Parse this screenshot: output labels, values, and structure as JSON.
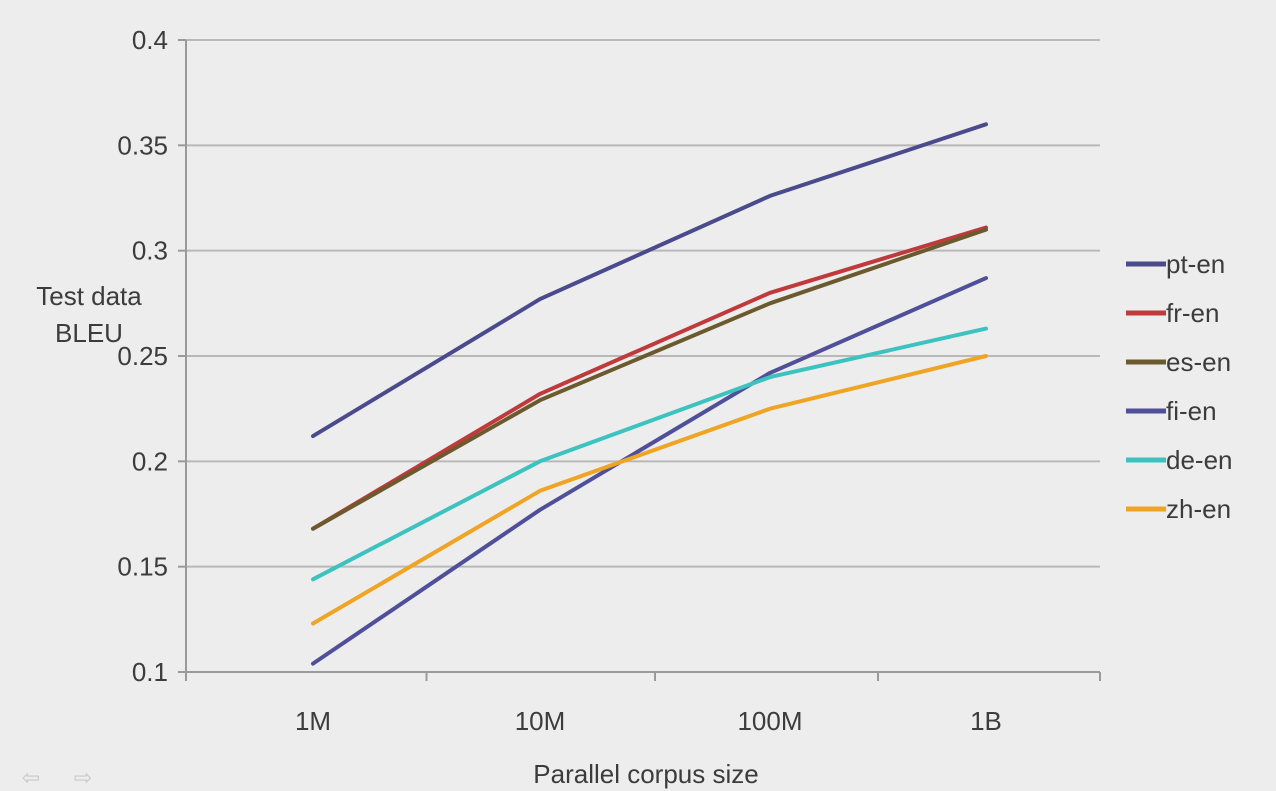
{
  "chart_data": {
    "type": "line",
    "title": "",
    "xlabel": "Parallel corpus size",
    "ylabel": [
      "Test data",
      "BLEU"
    ],
    "categories": [
      "1M",
      "10M",
      "100M",
      "1B"
    ],
    "ylim": [
      0.1,
      0.4
    ],
    "yticks": [
      0.1,
      0.15,
      0.2,
      0.25,
      0.3,
      0.35,
      0.4
    ],
    "ytick_labels": [
      "0.1",
      "0.15",
      "0.2",
      "0.25",
      "0.3",
      "0.35",
      "0.4"
    ],
    "grid": true,
    "legend_position": "right",
    "series": [
      {
        "name": "pt-en",
        "color": "#4a4a8c",
        "values": [
          0.212,
          0.277,
          0.326,
          0.36
        ]
      },
      {
        "name": "fr-en",
        "color": "#c0393b",
        "values": [
          0.168,
          0.232,
          0.28,
          0.311
        ]
      },
      {
        "name": "es-en",
        "color": "#6b5a2e",
        "values": [
          0.168,
          0.229,
          0.275,
          0.31
        ]
      },
      {
        "name": "fi-en",
        "color": "#4f4f9a",
        "values": [
          0.104,
          0.177,
          0.242,
          0.287
        ]
      },
      {
        "name": "de-en",
        "color": "#3cc3c0",
        "values": [
          0.144,
          0.2,
          0.24,
          0.263
        ]
      },
      {
        "name": "zh-en",
        "color": "#f0a424",
        "values": [
          0.123,
          0.186,
          0.225,
          0.25
        ]
      }
    ]
  },
  "nav": {
    "back_glyph": "⇦",
    "forward_glyph": "⇨"
  }
}
